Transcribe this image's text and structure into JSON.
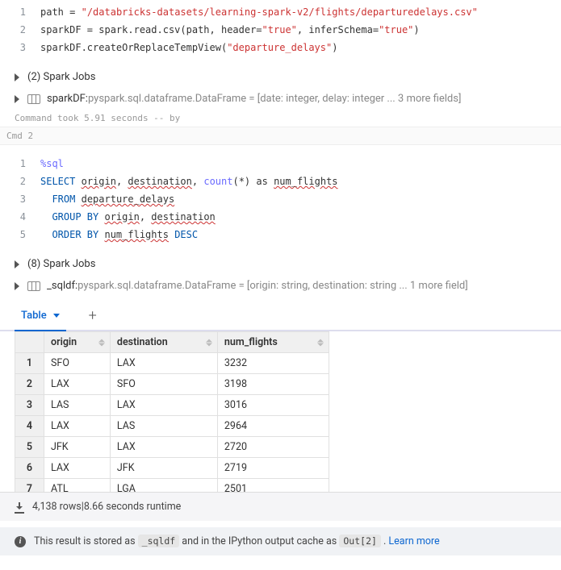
{
  "cell1": {
    "lines": [
      "1",
      "2",
      "3"
    ],
    "path_var": "path",
    "eq": " = ",
    "path_str": "\"/databricks-datasets/learning-spark-v2/flights/departuredelays.csv\"",
    "l2a": "sparkDF = spark.read.csv(path, header=",
    "l2b": "\"true\"",
    "l2c": ", inferSchema=",
    "l2d": "\"true\"",
    "l2e": ")",
    "l3a": "sparkDF.createOrReplaceTempView(",
    "l3b": "\"departure_delays\"",
    "l3c": ")",
    "jobs": "(2) Spark Jobs",
    "df_name": "sparkDF: ",
    "df_schema": "pyspark.sql.dataframe.DataFrame = [date: integer, delay: integer ... 3 more fields]",
    "timing": "Command took 5.91 seconds -- by"
  },
  "cmd_label": "Cmd 2",
  "cell2": {
    "lines": [
      "1",
      "2",
      "3",
      "4",
      "5"
    ],
    "magic": "%sql",
    "select": "SELECT",
    "origin": "origin",
    "comma": ", ",
    "destination": "destination",
    "count": "count",
    "star": "(*)",
    "as": " as ",
    "num_flights": "num_flights",
    "from": "FROM",
    "table": "departure_delays",
    "groupby": "GROUP BY",
    "orderby": "ORDER BY",
    "desc": "DESC",
    "indent": "  ",
    "space": " ",
    "jobs": "(8) Spark Jobs",
    "df_name": "_sqldf: ",
    "df_schema": "pyspark.sql.dataframe.DataFrame = [origin: string, destination: string ... 1 more field]"
  },
  "tabs": {
    "table": "Table"
  },
  "table": {
    "columns": [
      "origin",
      "destination",
      "num_flights"
    ],
    "rows": [
      [
        "1",
        "SFO",
        "LAX",
        "3232"
      ],
      [
        "2",
        "LAX",
        "SFO",
        "3198"
      ],
      [
        "3",
        "LAS",
        "LAX",
        "3016"
      ],
      [
        "4",
        "LAX",
        "LAS",
        "2964"
      ],
      [
        "5",
        "JFK",
        "LAX",
        "2720"
      ],
      [
        "6",
        "LAX",
        "JFK",
        "2719"
      ],
      [
        "7",
        "ATL",
        "LGA",
        "2501"
      ]
    ]
  },
  "status": {
    "rows": "4,138 rows",
    "sep": "  |  ",
    "runtime": "8.66 seconds runtime"
  },
  "info": {
    "pre": "This result is stored as ",
    "code1": "_sqldf",
    "mid": " and in the IPython output cache as ",
    "code2": "Out[2]",
    "post": " . ",
    "learn": "Learn more"
  }
}
